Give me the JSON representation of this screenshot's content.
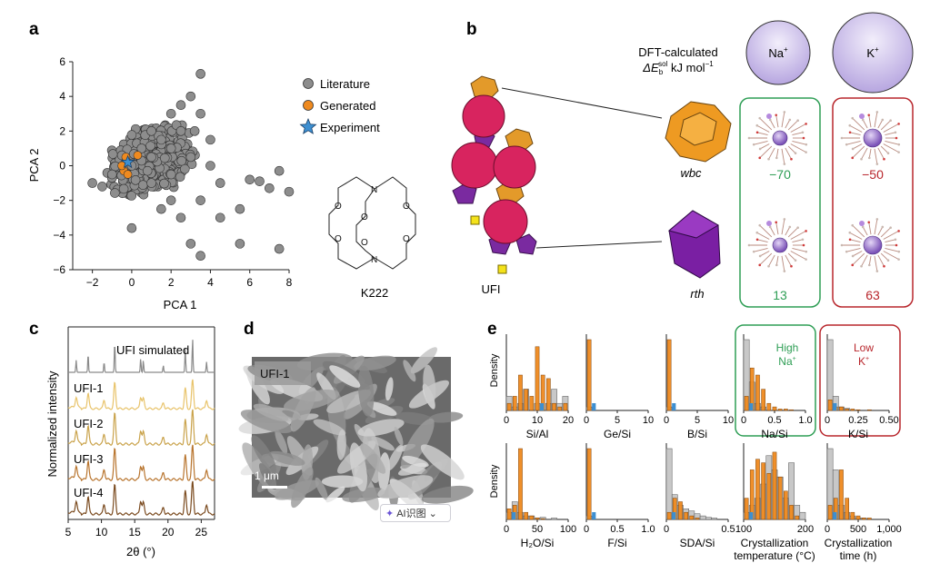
{
  "panels": {
    "a": "a",
    "b": "b",
    "c": "c",
    "d": "d",
    "e": "e"
  },
  "panel_a": {
    "legend": [
      "Literature",
      "Generated",
      "Experiment"
    ],
    "xlabel": "PCA 1",
    "ylabel": "PCA 2",
    "xticks": [
      "−2",
      "0",
      "2",
      "4",
      "6",
      "8"
    ],
    "yticks": [
      "6",
      "4",
      "2",
      "0",
      "−2",
      "−4",
      "−6"
    ],
    "molecule_label": "K222",
    "atom_N": "N",
    "atom_O": "O"
  },
  "panel_b": {
    "dft_title_1": "DFT-calculated",
    "dft_title_2": "ΔE",
    "dft_sub": "b",
    "dft_sup": "sol",
    "dft_units": " kJ mol",
    "dft_units_sup": "−1",
    "na_label": "Na",
    "k_label": "K",
    "plus": "+",
    "framework": "UFI",
    "cage1": "wbc",
    "cage2": "rth",
    "na_wbc": "−70",
    "na_rth": "13",
    "k_wbc": "−50",
    "k_rth": "63",
    "colors": {
      "na": "#2e9e55",
      "k": "#b8262c"
    }
  },
  "panel_c": {
    "ylabel": "Normalized intensity",
    "xlabel_theta": "θ",
    "xlabel": "2θ (°)",
    "xticks": [
      "5",
      "10",
      "15",
      "20",
      "25"
    ],
    "traces": [
      "UFI simulated",
      "UFI-1",
      "UFI-2",
      "UFI-3",
      "UFI-4"
    ],
    "colors": [
      "#8a8a8a",
      "#e8c36a",
      "#c9a24a",
      "#b8742d",
      "#7a4a1e"
    ]
  },
  "panel_d": {
    "label": "UFI-1",
    "scale": "1 μm"
  },
  "ai_chip": {
    "label": "AI识图",
    "arrow": "⌄"
  },
  "panel_e": {
    "density_label": "Density",
    "row1": [
      {
        "xlabel": "Si/Al",
        "ticks": [
          "0",
          "10",
          "20"
        ]
      },
      {
        "xlabel": "Ge/Si",
        "ticks": [
          "0",
          "5",
          "10"
        ]
      },
      {
        "xlabel": "B/Si",
        "ticks": [
          "0",
          "5",
          "10"
        ]
      },
      {
        "xlabel": "Na/Si",
        "ticks": [
          "0",
          "0.5",
          "1.0"
        ]
      },
      {
        "xlabel": "K/Si",
        "ticks": [
          "0",
          "0.25",
          "0.50"
        ]
      }
    ],
    "row2": [
      {
        "xlabel": "H₂O/Si",
        "ticks": [
          "0",
          "50",
          "100"
        ]
      },
      {
        "xlabel": "F/Si",
        "ticks": [
          "0",
          "0.5",
          "1.0"
        ]
      },
      {
        "xlabel": "SDA/Si",
        "ticks": [
          "0",
          "0.5"
        ]
      },
      {
        "xlabel": "Crystallization",
        "xlabel2": "temperature (°C)",
        "ticks": [
          "100",
          "200"
        ]
      },
      {
        "xlabel": "Crystallization",
        "xlabel2": "time (h)",
        "ticks": [
          "0",
          "500",
          "1,000"
        ]
      }
    ],
    "high_na": [
      "High",
      "Na"
    ],
    "low_k": [
      "Low",
      "K"
    ],
    "colors": {
      "generated": "#ef8a1f",
      "literature": "#c8c8c8",
      "experiment": "#3d8fd1"
    }
  },
  "chart_data": {
    "type": "scatter",
    "title": "",
    "xlabel": "PCA 1",
    "ylabel": "PCA 2",
    "xlim": [
      -3,
      8
    ],
    "ylim": [
      -6,
      6
    ],
    "series": [
      {
        "name": "Literature",
        "points": [
          [
            -2.0,
            -1.0
          ],
          [
            -1.5,
            -1.2
          ],
          [
            -1.0,
            -0.5
          ],
          [
            0.0,
            0.0
          ],
          [
            0.5,
            1.0
          ],
          [
            1.0,
            2.0
          ],
          [
            1.5,
            1.5
          ],
          [
            2.0,
            3.0
          ],
          [
            2.5,
            3.5
          ],
          [
            3.0,
            4.0
          ],
          [
            3.5,
            5.3
          ],
          [
            3.5,
            3.0
          ],
          [
            4.0,
            1.5
          ],
          [
            3.0,
            0.5
          ],
          [
            2.0,
            -0.5
          ],
          [
            1.0,
            -1.0
          ],
          [
            0.0,
            -3.6
          ],
          [
            1.5,
            -2.5
          ],
          [
            2.5,
            -3.0
          ],
          [
            3.0,
            -4.5
          ],
          [
            3.5,
            -5.2
          ],
          [
            4.5,
            -1.0
          ],
          [
            5.5,
            -2.5
          ],
          [
            6.0,
            -0.8
          ],
          [
            7.5,
            -0.3
          ],
          [
            7.0,
            -1.3
          ],
          [
            8.0,
            -1.5
          ],
          [
            7.5,
            -4.8
          ],
          [
            5.5,
            -4.5
          ],
          [
            4.5,
            -3.0
          ],
          [
            3.2,
            2.0
          ],
          [
            2.0,
            1.0
          ],
          [
            -0.5,
            0.6
          ],
          [
            1.0,
            0.5
          ],
          [
            2.5,
            2.0
          ],
          [
            4.0,
            0.0
          ],
          [
            3.5,
            -2.0
          ],
          [
            2.0,
            -2.0
          ],
          [
            6.5,
            -0.9
          ],
          [
            0.8,
            -0.3
          ]
        ]
      },
      {
        "name": "Generated",
        "points": [
          [
            -0.4,
            -0.3
          ],
          [
            -0.5,
            0.0
          ],
          [
            -0.3,
            0.5
          ],
          [
            0.3,
            0.6
          ],
          [
            -0.2,
            -0.5
          ]
        ]
      },
      {
        "name": "Experiment",
        "points": [
          [
            -0.2,
            0.2
          ]
        ]
      }
    ]
  }
}
